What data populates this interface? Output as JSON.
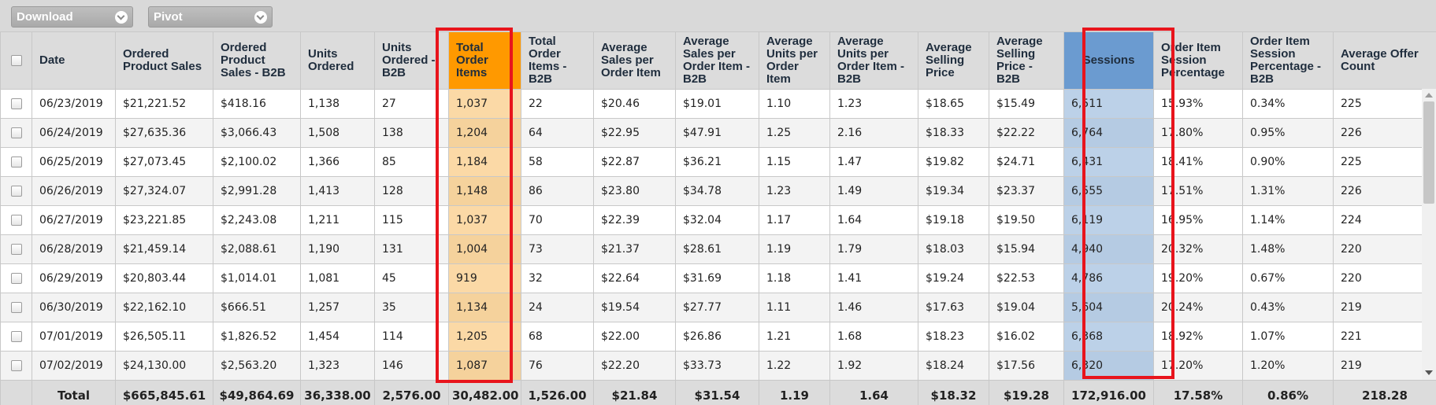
{
  "toolbar": {
    "download_label": "Download",
    "pivot_label": "Pivot"
  },
  "columns": [
    "Date",
    "Ordered Product Sales",
    "Ordered Product Sales - B2B",
    "Units Ordered",
    "Units Ordered - B2B",
    "Total Order Items",
    "Total Order Items - B2B",
    "Average Sales per Order Item",
    "Average Sales per Order Item - B2B",
    "Average Units per Order Item",
    "Average Units per Order Item - B2B",
    "Average Selling Price",
    "Average Selling Price - B2B",
    "Sessions",
    "Order Item Session Percentage",
    "Order Item Session Percentage - B2B",
    "Average Offer Count"
  ],
  "rows": [
    [
      "06/23/2019",
      "$21,221.52",
      "$418.16",
      "1,138",
      "27",
      "1,037",
      "22",
      "$20.46",
      "$19.01",
      "1.10",
      "1.23",
      "$18.65",
      "$15.49",
      "6,511",
      "15.93%",
      "0.34%",
      "225"
    ],
    [
      "06/24/2019",
      "$27,635.36",
      "$3,066.43",
      "1,508",
      "138",
      "1,204",
      "64",
      "$22.95",
      "$47.91",
      "1.25",
      "2.16",
      "$18.33",
      "$22.22",
      "6,764",
      "17.80%",
      "0.95%",
      "226"
    ],
    [
      "06/25/2019",
      "$27,073.45",
      "$2,100.02",
      "1,366",
      "85",
      "1,184",
      "58",
      "$22.87",
      "$36.21",
      "1.15",
      "1.47",
      "$19.82",
      "$24.71",
      "6,431",
      "18.41%",
      "0.90%",
      "225"
    ],
    [
      "06/26/2019",
      "$27,324.07",
      "$2,991.28",
      "1,413",
      "128",
      "1,148",
      "86",
      "$23.80",
      "$34.78",
      "1.23",
      "1.49",
      "$19.34",
      "$23.37",
      "6,555",
      "17.51%",
      "1.31%",
      "226"
    ],
    [
      "06/27/2019",
      "$23,221.85",
      "$2,243.08",
      "1,211",
      "115",
      "1,037",
      "70",
      "$22.39",
      "$32.04",
      "1.17",
      "1.64",
      "$19.18",
      "$19.50",
      "6,119",
      "16.95%",
      "1.14%",
      "224"
    ],
    [
      "06/28/2019",
      "$21,459.14",
      "$2,088.61",
      "1,190",
      "131",
      "1,004",
      "73",
      "$21.37",
      "$28.61",
      "1.19",
      "1.79",
      "$18.03",
      "$15.94",
      "4,940",
      "20.32%",
      "1.48%",
      "220"
    ],
    [
      "06/29/2019",
      "$20,803.44",
      "$1,014.01",
      "1,081",
      "45",
      "919",
      "32",
      "$22.64",
      "$31.69",
      "1.18",
      "1.41",
      "$19.24",
      "$22.53",
      "4,786",
      "19.20%",
      "0.67%",
      "220"
    ],
    [
      "06/30/2019",
      "$22,162.10",
      "$666.51",
      "1,257",
      "35",
      "1,134",
      "24",
      "$19.54",
      "$27.77",
      "1.11",
      "1.46",
      "$17.63",
      "$19.04",
      "5,604",
      "20.24%",
      "0.43%",
      "219"
    ],
    [
      "07/01/2019",
      "$26,505.11",
      "$1,826.52",
      "1,454",
      "114",
      "1,205",
      "68",
      "$22.00",
      "$26.86",
      "1.21",
      "1.68",
      "$18.23",
      "$16.02",
      "6,368",
      "18.92%",
      "1.07%",
      "221"
    ],
    [
      "07/02/2019",
      "$24,130.00",
      "$2,563.20",
      "1,323",
      "146",
      "1,087",
      "76",
      "$22.20",
      "$33.73",
      "1.22",
      "1.92",
      "$18.24",
      "$17.56",
      "6,320",
      "17.20%",
      "1.20%",
      "219"
    ]
  ],
  "totals": [
    "Total",
    "$665,845.61",
    "$49,864.69",
    "36,338.00",
    "2,576.00",
    "30,482.00",
    "1,526.00",
    "$21.84",
    "$31.54",
    "1.19",
    "1.64",
    "$18.32",
    "$19.28",
    "172,916.00",
    "17.58%",
    "0.86%",
    "218.28"
  ],
  "colors": {
    "highlight_orange": "#ff9900",
    "highlight_blue": "#6b9bd0",
    "annotation_red": "#e8141c"
  }
}
